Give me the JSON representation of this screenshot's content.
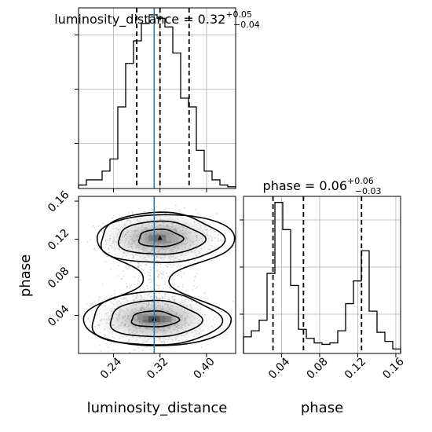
{
  "chart_data": {
    "type": "corner",
    "colors": {
      "truth": "#1f77b4",
      "hist": "#000000",
      "grid": "#b0b0b0",
      "quantile": "#000000"
    },
    "parameters": [
      {
        "name": "luminosity_distance",
        "truth": 0.31,
        "median": 0.32,
        "plus": "+0.05",
        "minus": "−0.04",
        "title_prefix": "luminosity_distance = 0.32",
        "quantiles": [
          0.28,
          0.32,
          0.37
        ],
        "range": [
          0.18,
          0.45
        ],
        "ticks": [
          0.24,
          0.32,
          0.4
        ],
        "tick_labels": [
          "0.24",
          "0.32",
          "0.40"
        ],
        "hist_bins": [
          0.18,
          0.1935,
          0.207,
          0.2205,
          0.234,
          0.2475,
          0.261,
          0.2745,
          0.288,
          0.3015,
          0.315,
          0.3285,
          0.342,
          0.3555,
          0.369,
          0.3825,
          0.396,
          0.4095,
          0.423,
          0.4365,
          0.45
        ],
        "hist_values": [
          0.02,
          0.05,
          0.05,
          0.1,
          0.17,
          0.47,
          0.72,
          0.85,
          0.95,
          1.0,
          0.98,
          0.93,
          0.78,
          0.52,
          0.47,
          0.22,
          0.1,
          0.05,
          0.02,
          0.01
        ]
      },
      {
        "name": "phase",
        "truth": null,
        "median": 0.06,
        "plus": "+0.06",
        "minus": "−0.03",
        "title_prefix": "phase = 0.06",
        "quantiles": [
          0.031,
          0.063,
          0.124
        ],
        "range": [
          0.0,
          0.165
        ],
        "ticks": [
          0.04,
          0.08,
          0.12,
          0.16
        ],
        "tick_labels": [
          "0.04",
          "0.08",
          "0.12",
          "0.16"
        ],
        "hist_bins": [
          0.0,
          0.00825,
          0.0165,
          0.02475,
          0.033,
          0.04125,
          0.0495,
          0.05775,
          0.066,
          0.07425,
          0.0825,
          0.09075,
          0.099,
          0.10725,
          0.1155,
          0.12375,
          0.132,
          0.14025,
          0.1485,
          0.15675,
          0.165
        ],
        "hist_values": [
          0.11,
          0.15,
          0.22,
          0.53,
          1.0,
          0.82,
          0.45,
          0.16,
          0.1,
          0.07,
          0.06,
          0.07,
          0.15,
          0.33,
          0.48,
          0.68,
          0.28,
          0.14,
          0.08,
          0.03
        ]
      }
    ],
    "density_modes": [
      {
        "x": 0.32,
        "y": 0.121
      },
      {
        "x": 0.31,
        "y": 0.036
      }
    ],
    "xlabels": [
      "luminosity_distance",
      "phase"
    ],
    "ylabel": "phase",
    "grid": true
  }
}
